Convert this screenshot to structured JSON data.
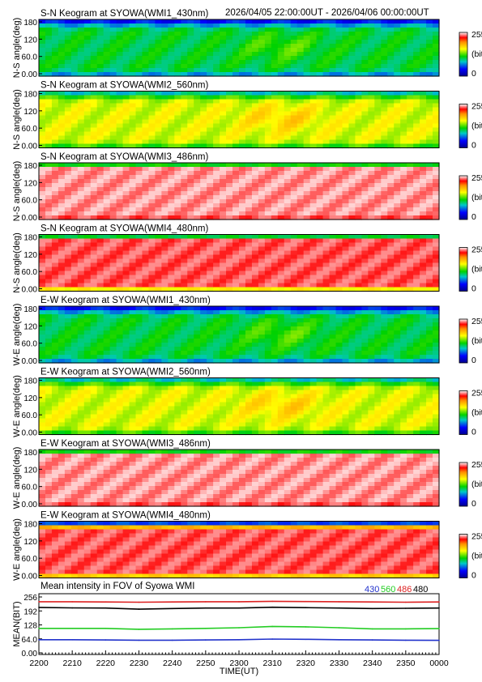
{
  "header": {
    "time_range": "2026/04/05 22:00:00UT - 2026/04/06 00:00:00UT"
  },
  "colorbar": {
    "max_label": "255",
    "unit_label": "(bit)",
    "min_label": "0"
  },
  "keogram_y_ticks": [
    "180",
    "120",
    "60.0",
    "0.00"
  ],
  "keograms": [
    {
      "title": "S-N Keogram at SYOWA(WMI1_430nm)",
      "ylabel": "N-S angle(deg)",
      "level": 0.42,
      "variant": "green"
    },
    {
      "title": "S-N Keogram at SYOWA(WMI2_560nm)",
      "ylabel": "N-S angle(deg)",
      "level": 0.6,
      "variant": "yellow"
    },
    {
      "title": "S-N Keogram at SYOWA(WMI3_486nm)",
      "ylabel": "N-S angle(deg)",
      "level": 0.95,
      "variant": "white"
    },
    {
      "title": "S-N Keogram at SYOWA(WMI4_480nm)",
      "ylabel": "N-S angle(deg)",
      "level": 0.92,
      "variant": "white-band"
    },
    {
      "title": "E-W Keogram at SYOWA(WMI1_430nm)",
      "ylabel": "W-E angle(deg)",
      "level": 0.42,
      "variant": "green"
    },
    {
      "title": "E-W Keogram at SYOWA(WMI2_560nm)",
      "ylabel": "W-E angle(deg)",
      "level": 0.6,
      "variant": "yellow"
    },
    {
      "title": "E-W Keogram at SYOWA(WMI3_486nm)",
      "ylabel": "W-E angle(deg)",
      "level": 0.95,
      "variant": "white"
    },
    {
      "title": "E-W Keogram at SYOWA(WMI4_480nm)",
      "ylabel": "W-E angle(deg)",
      "level": 0.92,
      "variant": "white-edges"
    }
  ],
  "mean_panel": {
    "title": "Mean intensity in FOV of Syowa WMI",
    "ylabel": "MEAN(BIT)",
    "legend": [
      {
        "label": "430",
        "color": "#2233cc"
      },
      {
        "label": "560",
        "color": "#22cc22"
      },
      {
        "label": "486",
        "color": "#dd2222"
      },
      {
        "label": "480",
        "color": "#000000"
      }
    ],
    "y_ticks": [
      "256",
      "192",
      "128",
      "64.0",
      "0.00"
    ]
  },
  "x_ticks": [
    "2200",
    "2210",
    "2220",
    "2230",
    "2240",
    "2250",
    "2300",
    "2310",
    "2320",
    "2330",
    "2340",
    "2350",
    "0000"
  ],
  "xlabel": "TIME(UT)",
  "chart_data": {
    "type": "line",
    "title": "Mean intensity in FOV of Syowa WMI",
    "xlabel": "TIME(UT)",
    "ylabel": "MEAN(BIT)",
    "ylim": [
      0,
      256
    ],
    "x": [
      "2200",
      "2210",
      "2220",
      "2230",
      "2240",
      "2250",
      "2300",
      "2310",
      "2320",
      "2330",
      "2340",
      "2350",
      "0000"
    ],
    "series": [
      {
        "name": "430",
        "color": "#2233cc",
        "values": [
          60,
          60,
          59,
          58,
          58,
          59,
          60,
          63,
          62,
          60,
          59,
          58,
          57
        ]
      },
      {
        "name": "560",
        "color": "#22cc22",
        "values": [
          112,
          112,
          112,
          108,
          110,
          112,
          115,
          121,
          119,
          115,
          110,
          110,
          111
        ]
      },
      {
        "name": "486",
        "color": "#dd2222",
        "values": [
          234,
          234,
          233,
          232,
          233,
          234,
          234,
          236,
          235,
          234,
          233,
          232,
          233
        ]
      },
      {
        "name": "480",
        "color": "#000000",
        "values": [
          208,
          206,
          205,
          200,
          203,
          205,
          205,
          209,
          207,
          205,
          203,
          204,
          205
        ]
      }
    ]
  }
}
